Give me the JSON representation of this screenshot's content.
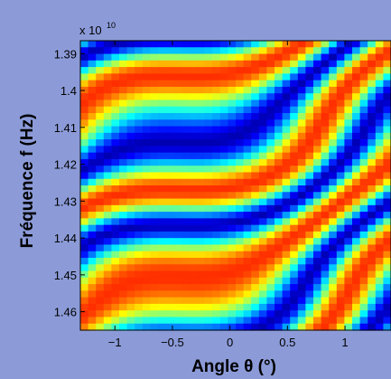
{
  "chart_data": {
    "type": "heatmap",
    "xlabel": "Angle   θ (°)",
    "ylabel": "Fréquence  f (Hz)",
    "y_multiplier": "x 10",
    "y_multiplier_exponent": "10",
    "xlim": [
      -1.3,
      1.4
    ],
    "ylim": [
      13.865,
      14.65
    ],
    "x_ticks": [
      -1,
      -0.5,
      0,
      0.5,
      1
    ],
    "x_tick_labels": [
      "−1",
      "−0.5",
      "0",
      "0.5",
      "1"
    ],
    "y_ticks": [
      13.9,
      14.0,
      14.1,
      14.2,
      14.3,
      14.4,
      14.5,
      14.6
    ],
    "y_tick_labels": [
      "1.39",
      "1.4",
      "1.41",
      "1.42",
      "1.43",
      "1.44",
      "1.45",
      "1.46"
    ],
    "y_axis_reversed": true,
    "colormap": "jet",
    "colormap_stops": [
      "#00007f",
      "#0000ff",
      "#00ffff",
      "#ffff00",
      "#ff0000"
    ],
    "grid": false,
    "value_range": [
      0,
      1
    ],
    "cols": 40,
    "rows": 44
  }
}
